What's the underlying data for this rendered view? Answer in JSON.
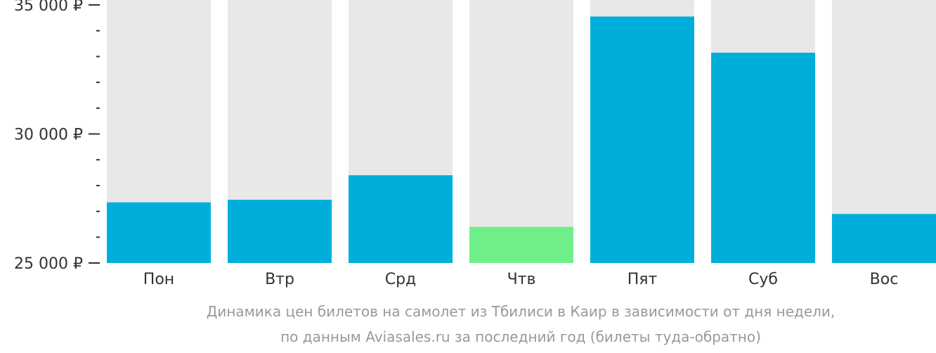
{
  "chart_data": {
    "type": "bar",
    "categories": [
      "Пон",
      "Втр",
      "Срд",
      "Чтв",
      "Пят",
      "Суб",
      "Вос"
    ],
    "values": [
      27350,
      27450,
      28400,
      26400,
      34550,
      33150,
      26900
    ],
    "highlight_index": 3,
    "ylim": [
      25000,
      35000
    ],
    "yticks": [
      25000,
      30000,
      35000
    ],
    "ytick_labels": [
      "25 000 ₽",
      "30 000 ₽",
      "35 000 ₽"
    ],
    "minor_ticks_per_major": 5,
    "colors": {
      "bar": "#00AEDB",
      "highlight": "#6EEF8A",
      "background_column": "#E8E8E8",
      "axis": "#333333"
    },
    "grid": false,
    "legend": "none"
  },
  "caption": {
    "line1": "Динамика цен билетов на самолет из Тбилиси в Каир в зависимости от дня недели,",
    "line2": "по данным Aviasales.ru за последний год (билеты туда-обратно)"
  }
}
